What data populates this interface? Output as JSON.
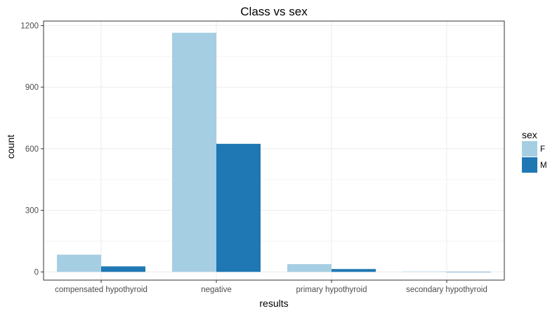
{
  "chart_data": {
    "type": "bar",
    "title": "Class vs sex",
    "xlabel": "results",
    "ylabel": "count",
    "categories": [
      "compensated hypothyroid",
      "negative",
      "primary hypothyroid",
      "secondary hypothyroid"
    ],
    "series": [
      {
        "name": "F",
        "values": [
          84,
          1165,
          38,
          2
        ],
        "color": "#a6cee3"
      },
      {
        "name": "M",
        "values": [
          27,
          624,
          14,
          0
        ],
        "color": "#1f78b4"
      }
    ],
    "ylim": [
      -40,
      1222
    ],
    "yticks": [
      0,
      300,
      600,
      900,
      1200
    ],
    "grid": true,
    "legend": {
      "title": "sex",
      "position": "right"
    }
  }
}
